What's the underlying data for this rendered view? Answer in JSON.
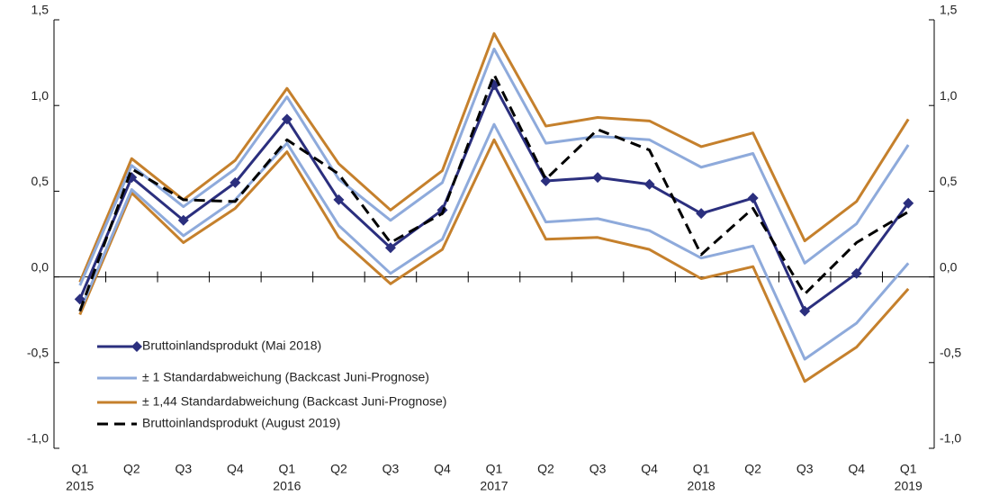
{
  "chart_data": {
    "type": "line",
    "categories": [
      "Q1",
      "Q2",
      "Q3",
      "Q4",
      "Q1",
      "Q2",
      "Q3",
      "Q4",
      "Q1",
      "Q2",
      "Q3",
      "Q4",
      "Q1",
      "Q2",
      "Q3",
      "Q4",
      "Q1"
    ],
    "years": [
      "2015",
      null,
      null,
      null,
      "2016",
      null,
      null,
      null,
      "2017",
      null,
      null,
      null,
      "2018",
      null,
      null,
      null,
      "2019"
    ],
    "ylim": [
      -1.0,
      1.5
    ],
    "yticks": [
      {
        "value": -1.0,
        "label": "-1,0"
      },
      {
        "value": -0.5,
        "label": "-0,5"
      },
      {
        "value": 0,
        "label": "0,0"
      },
      {
        "value": 0.5,
        "label": "0,5"
      },
      {
        "value": 1.0,
        "label": "1,0"
      },
      {
        "value": 1.5,
        "label": "1,5"
      }
    ],
    "legend": "lower left",
    "series": [
      {
        "name": "Bruttoinlandsprodukt (Mai 2018)",
        "color": "#2b2f7e",
        "marker": "diamond",
        "values": [
          -0.13,
          0.58,
          0.33,
          0.55,
          0.92,
          0.45,
          0.17,
          0.39,
          1.12,
          0.56,
          0.58,
          0.54,
          0.37,
          0.46,
          -0.2,
          0.02,
          0.43
        ]
      },
      {
        "name": "± 1 Standardabweichung (Backcast Juni-Prognose)",
        "color": "#8eaadb",
        "upper": [
          -0.05,
          0.65,
          0.41,
          0.63,
          1.05,
          0.57,
          0.33,
          0.55,
          1.33,
          0.78,
          0.82,
          0.8,
          0.64,
          0.72,
          0.08,
          0.31,
          0.77
        ],
        "lower": [
          -0.2,
          0.51,
          0.24,
          0.45,
          0.78,
          0.3,
          0.02,
          0.22,
          0.89,
          0.32,
          0.34,
          0.27,
          0.11,
          0.18,
          -0.48,
          -0.27,
          0.08
        ]
      },
      {
        "name": "± 1,44 Standardabweichung (Backcast Juni-Prognose)",
        "color": "#c5802c",
        "upper": [
          -0.03,
          0.69,
          0.45,
          0.68,
          1.1,
          0.66,
          0.39,
          0.62,
          1.42,
          0.88,
          0.93,
          0.91,
          0.76,
          0.84,
          0.21,
          0.44,
          0.92
        ],
        "lower": [
          -0.22,
          0.49,
          0.2,
          0.4,
          0.73,
          0.23,
          -0.04,
          0.16,
          0.8,
          0.22,
          0.23,
          0.16,
          -0.01,
          0.06,
          -0.61,
          -0.41,
          -0.07
        ]
      },
      {
        "name": "Bruttoinlandsprodukt (August 2019)",
        "color": "#000000",
        "dashed": true,
        "values": [
          -0.2,
          0.63,
          0.45,
          0.44,
          0.8,
          0.6,
          0.2,
          0.37,
          1.18,
          0.57,
          0.86,
          0.74,
          0.13,
          0.4,
          -0.1,
          0.2,
          0.38
        ]
      }
    ]
  }
}
